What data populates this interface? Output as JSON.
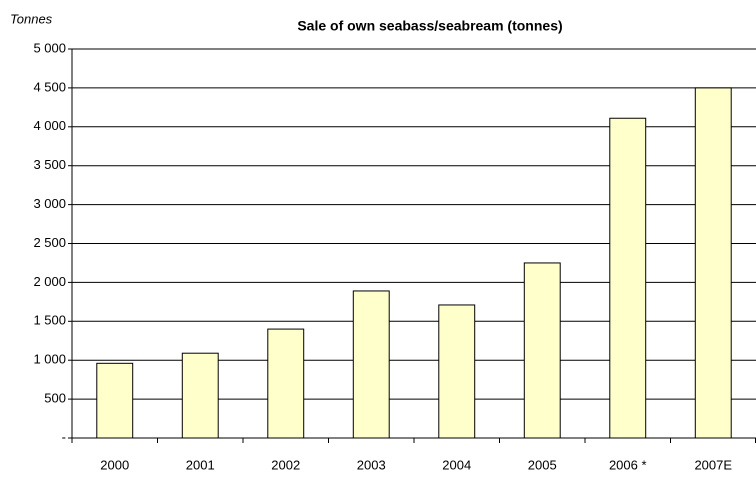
{
  "chart_data": {
    "type": "bar",
    "title": "Sale of own seabass/seabream (tonnes)",
    "y_label": "Tonnes",
    "categories": [
      "2000",
      "2001",
      "2002",
      "2003",
      "2004",
      "2005",
      "2006 *",
      "2007E"
    ],
    "values": [
      960,
      1090,
      1400,
      1890,
      1710,
      2250,
      4110,
      4500
    ],
    "color": "#ffffcc",
    "ylim": [
      0,
      5000
    ],
    "yticks": [
      {
        "value": 0,
        "label": "-"
      },
      500,
      {
        "value": 1000,
        "label": "1 000"
      },
      {
        "value": 1500,
        "label": "1 500"
      },
      {
        "value": 2000,
        "label": "2 000"
      },
      {
        "value": 2500,
        "label": "2 500"
      },
      {
        "value": 3000,
        "label": "3 000"
      },
      {
        "value": 3500,
        "label": "3 500"
      },
      {
        "value": 4000,
        "label": "4 000"
      },
      {
        "value": 4500,
        "label": "4 500"
      },
      {
        "value": 5000,
        "label": "5 000"
      }
    ],
    "grid": true
  }
}
